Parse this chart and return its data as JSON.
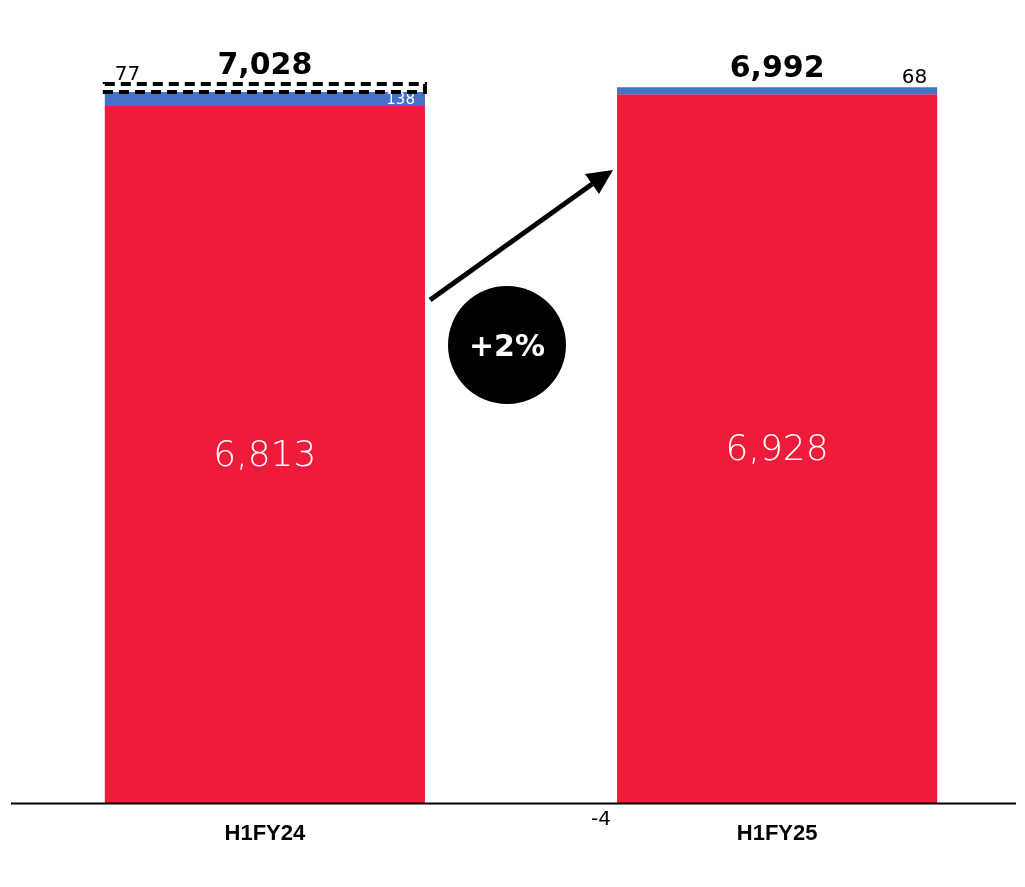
{
  "chart_data": {
    "type": "bar",
    "stacked": true,
    "categories": [
      "H1FY24",
      "H1FY25"
    ],
    "series": [
      {
        "color": "#ee1b3b",
        "values": [
          6813,
          6928
        ],
        "value_labels": [
          "6,813",
          "6,928"
        ]
      },
      {
        "color": "#4472c4",
        "values": [
          138,
          68
        ],
        "value_labels": [
          "138",
          "68"
        ]
      },
      {
        "color": "#ffffff",
        "line_style": "dashed",
        "values": [
          77,
          null
        ],
        "value_labels": [
          "77",
          null
        ]
      },
      {
        "color": "#ffb6bf",
        "values": [
          null,
          -4
        ],
        "value_labels": [
          null,
          "-4"
        ]
      }
    ],
    "totals": [
      "7,028",
      "6,992"
    ],
    "annotations": [
      "+2%"
    ]
  }
}
